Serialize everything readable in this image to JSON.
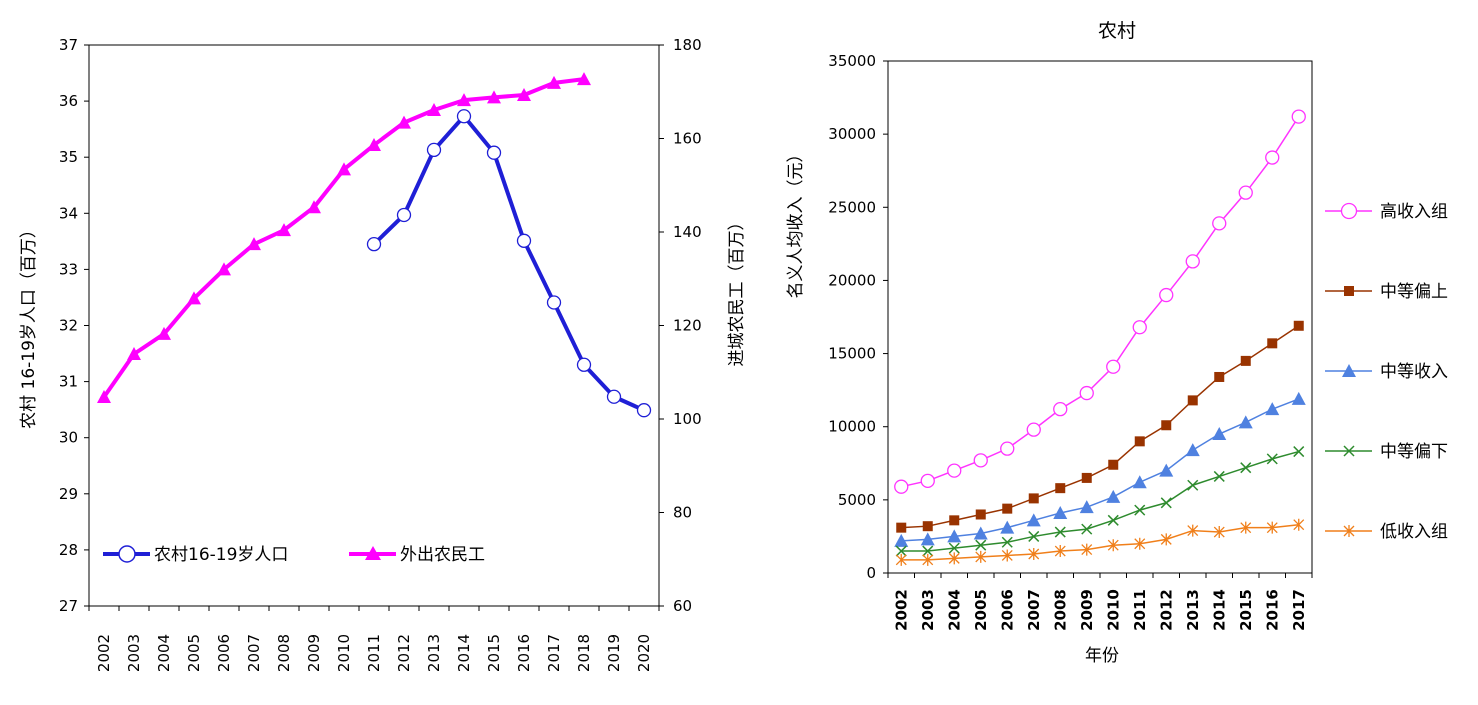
{
  "chart_data": [
    {
      "type": "line",
      "title": "",
      "xlabel": "",
      "ylabel": "农村 16-19岁人口（百万）",
      "y2label": "进城农民工（百万）",
      "x": [
        "2002",
        "2003",
        "2004",
        "2005",
        "2006",
        "2007",
        "2008",
        "2009",
        "2010",
        "2011",
        "2012",
        "2013",
        "2014",
        "2015",
        "2016",
        "2017",
        "2018",
        "2019",
        "2020"
      ],
      "ylim": [
        27,
        37
      ],
      "y2lim": [
        60,
        180
      ],
      "yticks": [
        "27",
        "28",
        "29",
        "30",
        "31",
        "32",
        "33",
        "34",
        "35",
        "36",
        "37"
      ],
      "y2ticks": [
        "60",
        "80",
        "100",
        "120",
        "140",
        "160",
        "180"
      ],
      "grid": false,
      "legend": "bottom-left",
      "series": [
        {
          "name": "农村16-19岁人口",
          "axis": "left",
          "color": "#1f1fd6",
          "marker": "circle",
          "x": [
            "2011",
            "2012",
            "2013",
            "2014",
            "2015",
            "2016",
            "2017",
            "2018",
            "2019",
            "2020"
          ],
          "values": [
            33.45,
            33.97,
            35.13,
            35.73,
            35.08,
            33.51,
            32.41,
            31.3,
            30.73,
            30.49
          ]
        },
        {
          "name": "外出农民工",
          "axis": "right",
          "color": "#ff00ff",
          "marker": "triangle",
          "x": [
            "2002",
            "2003",
            "2004",
            "2005",
            "2006",
            "2007",
            "2008",
            "2009",
            "2010",
            "2011",
            "2012",
            "2013",
            "2014",
            "2015",
            "2016",
            "2017",
            "2018"
          ],
          "values": [
            104.7,
            113.9,
            118.2,
            125.8,
            132.0,
            137.4,
            140.4,
            145.3,
            153.4,
            158.6,
            163.4,
            166.1,
            168.2,
            168.8,
            169.3,
            171.9,
            172.7
          ]
        }
      ]
    },
    {
      "type": "line",
      "title": "农村",
      "xlabel": "年份",
      "ylabel": "名义人均收入（元）",
      "x": [
        "2002",
        "2003",
        "2004",
        "2005",
        "2006",
        "2007",
        "2008",
        "2009",
        "2010",
        "2011",
        "2012",
        "2013",
        "2014",
        "2015",
        "2016",
        "2017"
      ],
      "ylim": [
        0,
        35000
      ],
      "yticks": [
        "0",
        "5000",
        "10000",
        "15000",
        "20000",
        "25000",
        "30000",
        "35000"
      ],
      "grid": false,
      "legend": "right",
      "series": [
        {
          "name": "高收入组",
          "color": "#ff33ff",
          "marker": "circle",
          "values": [
            5900,
            6300,
            7000,
            7700,
            8500,
            9800,
            11200,
            12300,
            14100,
            16800,
            19000,
            21300,
            23900,
            26000,
            28400,
            31200
          ]
        },
        {
          "name": "中等偏上",
          "color": "#993300",
          "marker": "square",
          "values": [
            3100,
            3200,
            3600,
            4000,
            4400,
            5100,
            5800,
            6500,
            7400,
            9000,
            10100,
            11800,
            13400,
            14500,
            15700,
            16900
          ]
        },
        {
          "name": "中等收入",
          "color": "#4f81e0",
          "marker": "triangle",
          "values": [
            2200,
            2300,
            2500,
            2700,
            3100,
            3600,
            4100,
            4500,
            5200,
            6200,
            7000,
            8400,
            9500,
            10300,
            11200,
            11900
          ]
        },
        {
          "name": "中等偏下",
          "color": "#2e8b2e",
          "marker": "x",
          "values": [
            1500,
            1500,
            1700,
            1900,
            2100,
            2500,
            2800,
            3000,
            3600,
            4300,
            4800,
            6000,
            6600,
            7200,
            7800,
            8300
          ]
        },
        {
          "name": "低收入组",
          "color": "#f07f1a",
          "marker": "star",
          "values": [
            900,
            900,
            1000,
            1100,
            1200,
            1300,
            1500,
            1600,
            1900,
            2000,
            2300,
            2900,
            2800,
            3100,
            3100,
            3300
          ]
        }
      ]
    }
  ]
}
